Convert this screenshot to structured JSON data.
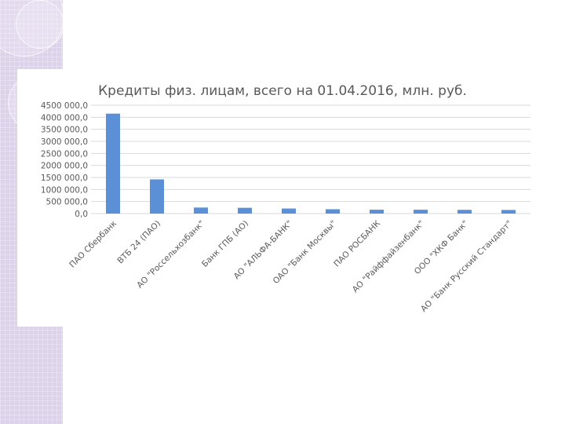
{
  "chart_data": {
    "type": "bar",
    "title": "Кредиты физ. лицам, всего на 01.04.2016, млн. руб.",
    "categories": [
      "ПАО Сбербанк",
      "ВТБ 24 (ПАО)",
      "АО \"Россельхозбанк\"",
      "Банк ГПБ (АО)",
      "АО \"АЛЬФА-БАНК\"",
      "ОАО \"Банк Москвы\"",
      "ПАО РОСБАНК",
      "АО \"Райффайзенбанк\"",
      "ООО \"ХКФ Банк\"",
      "АО \"Банк Русский Стандарт\""
    ],
    "values": [
      4150000,
      1420000,
      250000,
      240000,
      210000,
      180000,
      160000,
      160000,
      155000,
      150000
    ],
    "ylim": [
      0,
      4500000
    ],
    "yticks": [
      "0,0",
      "500 000,0",
      "1000 000,0",
      "1500 000,0",
      "2000 000,0",
      "2500 000,0",
      "3000 000,0",
      "3500 000,0",
      "4000 000,0",
      "4500 000,0"
    ],
    "grid": true,
    "legend": "none",
    "bar_color": "#5b8fd6"
  }
}
